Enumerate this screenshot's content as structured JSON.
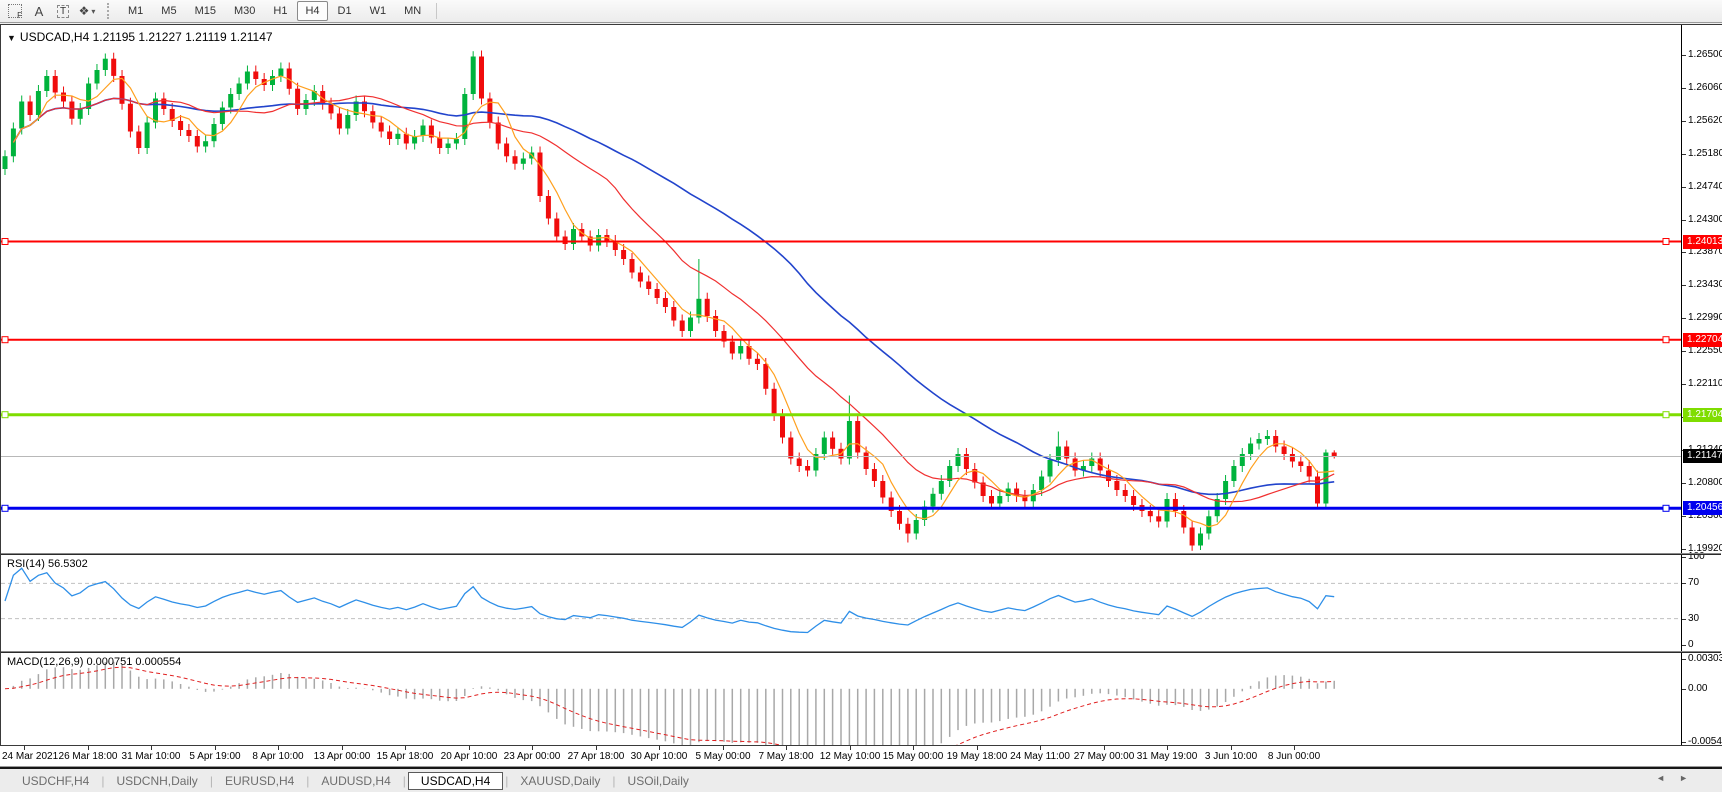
{
  "toolbar": {
    "tools": [
      {
        "name": "indicators-grid",
        "glyph": "F"
      },
      {
        "name": "label-tool",
        "glyph": "A"
      },
      {
        "name": "text-tool",
        "glyph": "T"
      },
      {
        "name": "cycle-lines-tool",
        "glyph": "❖"
      },
      {
        "name": "tool-dropdown",
        "glyph": "▾"
      }
    ],
    "timeframes": [
      "M1",
      "M5",
      "M15",
      "M30",
      "H1",
      "H4",
      "D1",
      "W1",
      "MN"
    ],
    "active_timeframe": "H4"
  },
  "chart_header": {
    "collapse_glyph": "▼",
    "title": "USDCAD,H4 1.21195 1.21227 1.21119 1.21147"
  },
  "rsi_label": "RSI(14) 56.5302",
  "macd_label": "MACD(12,26,9) 0.000751 0.000554",
  "tabs": {
    "items": [
      {
        "label": "USDCHF,H4",
        "active": false
      },
      {
        "label": "USDCNH,Daily",
        "active": false
      },
      {
        "label": "EURUSD,H4",
        "active": false
      },
      {
        "label": "AUDUSD,H4",
        "active": false
      },
      {
        "label": "USDCAD,H4",
        "active": true
      },
      {
        "label": "XAUUSD,Daily",
        "active": false
      },
      {
        "label": "USOil,Daily",
        "active": false
      }
    ],
    "scroll_left_glyph": "◄",
    "scroll_right_glyph": "►"
  },
  "chart_data": {
    "type": "candlestick",
    "symbol": "USDCAD",
    "timeframe": "H4",
    "ohlc_current": {
      "open": "1.21195",
      "high": "1.21227",
      "low": "1.21119",
      "close": "1.21147"
    },
    "colors": {
      "up": "#00b33c",
      "down": "#f00c0c",
      "ma_fast": "#ffa01e",
      "ma_mid": "#f03030",
      "ma_slow": "#2244cc",
      "rsi_line": "#2e8fe8",
      "rsi_level": "#c0c0c0",
      "macd_hist": "#a8a8a8",
      "macd_signal": "#e02020",
      "current_price_bg": "#000000",
      "current_price_line": "#b8b8b8"
    },
    "y_axis": {
      "top_price": 1.269,
      "bottom_price": 1.1986,
      "ticks": [
        "1.26500",
        "1.26060",
        "1.25620",
        "1.25180",
        "1.24740",
        "1.24300",
        "1.23870",
        "1.23430",
        "1.22990",
        "1.22550",
        "1.22110",
        "1.21670",
        "1.21240",
        "1.20800",
        "1.20360",
        "1.19920"
      ]
    },
    "x_axis": {
      "labels": [
        "24 Mar 2021",
        "26 Mar 18:00",
        "31 Mar 10:00",
        "5 Apr 19:00",
        "8 Apr 10:00",
        "13 Apr 00:00",
        "15 Apr 18:00",
        "20 Apr 10:00",
        "23 Apr 00:00",
        "27 Apr 18:00",
        "30 Apr 10:00",
        "5 May 00:00",
        "7 May 18:00",
        "12 May 10:00",
        "15 May 00:00",
        "19 May 18:00",
        "24 May 11:00",
        "27 May 00:00",
        "31 May 19:00",
        "3 Jun 10:00",
        "8 Jun 00:00"
      ]
    },
    "horizontal_lines": [
      {
        "price": 1.24013,
        "label": "1.24013",
        "color": "#ff0000",
        "width": 2
      },
      {
        "price": 1.22704,
        "label": "1.22704",
        "color": "#ff0000",
        "width": 2
      },
      {
        "price": 1.21704,
        "label": "1.21704",
        "color": "#7fdd00",
        "width": 3
      },
      {
        "price": 1.20456,
        "label": "1.20456",
        "color": "#0000ee",
        "width": 3
      }
    ],
    "current_price": {
      "price": 1.21147,
      "label": "1.21147"
    },
    "rsi": {
      "value": 56.5302,
      "levels": [
        70,
        30
      ],
      "range": [
        0,
        100
      ],
      "axis_labels": [
        "100",
        "70",
        "30",
        "0"
      ]
    },
    "macd": {
      "main": 0.000751,
      "signal": 0.000554,
      "axis_labels": [
        "0.003035",
        "0.00",
        "-0.00542"
      ]
    },
    "candles": [
      [
        1.2498,
        1.2523,
        1.249,
        1.2515
      ],
      [
        1.2515,
        1.256,
        1.2507,
        1.2552
      ],
      [
        1.2552,
        1.2596,
        1.2544,
        1.2588
      ],
      [
        1.2588,
        1.2596,
        1.2562,
        1.257
      ],
      [
        1.257,
        1.261,
        1.2562,
        1.2602
      ],
      [
        1.2602,
        1.263,
        1.2594,
        1.2622
      ],
      [
        1.2622,
        1.263,
        1.2592,
        1.26
      ],
      [
        1.26,
        1.2608,
        1.258,
        1.2588
      ],
      [
        1.2588,
        1.2596,
        1.2557,
        1.2565
      ],
      [
        1.2565,
        1.2586,
        1.2557,
        1.2578
      ],
      [
        1.2578,
        1.262,
        1.257,
        1.2612
      ],
      [
        1.2612,
        1.2638,
        1.2604,
        1.263
      ],
      [
        1.263,
        1.2652,
        1.2622,
        1.2645
      ],
      [
        1.2645,
        1.2653,
        1.2614,
        1.2622
      ],
      [
        1.2622,
        1.263,
        1.2577,
        1.2585
      ],
      [
        1.2585,
        1.2593,
        1.254,
        1.2548
      ],
      [
        1.2548,
        1.2556,
        1.2518,
        1.2526
      ],
      [
        1.2526,
        1.2568,
        1.2518,
        1.256
      ],
      [
        1.256,
        1.26,
        1.2552,
        1.2592
      ],
      [
        1.2592,
        1.26,
        1.257,
        1.2578
      ],
      [
        1.2578,
        1.2586,
        1.2554,
        1.2562
      ],
      [
        1.2562,
        1.257,
        1.2542,
        1.255
      ],
      [
        1.255,
        1.2558,
        1.2534,
        1.2542
      ],
      [
        1.2542,
        1.255,
        1.252,
        1.2528
      ],
      [
        1.2528,
        1.2543,
        1.252,
        1.2535
      ],
      [
        1.2535,
        1.2566,
        1.2527,
        1.2558
      ],
      [
        1.2558,
        1.2588,
        1.255,
        1.258
      ],
      [
        1.258,
        1.2606,
        1.2572,
        1.2598
      ],
      [
        1.2598,
        1.262,
        1.259,
        1.2612
      ],
      [
        1.2612,
        1.2636,
        1.2604,
        1.2628
      ],
      [
        1.2628,
        1.2636,
        1.261,
        1.2618
      ],
      [
        1.2618,
        1.2626,
        1.2602,
        1.261
      ],
      [
        1.261,
        1.263,
        1.2602,
        1.2622
      ],
      [
        1.2622,
        1.264,
        1.2614,
        1.2632
      ],
      [
        1.2632,
        1.264,
        1.2597,
        1.2605
      ],
      [
        1.2605,
        1.2613,
        1.257,
        1.2578
      ],
      [
        1.2578,
        1.2598,
        1.257,
        1.259
      ],
      [
        1.259,
        1.261,
        1.2582,
        1.2602
      ],
      [
        1.2602,
        1.261,
        1.2577,
        1.2585
      ],
      [
        1.2585,
        1.2593,
        1.2564,
        1.2572
      ],
      [
        1.2572,
        1.258,
        1.2544,
        1.2552
      ],
      [
        1.2552,
        1.2578,
        1.2544,
        1.257
      ],
      [
        1.257,
        1.2596,
        1.2562,
        1.2588
      ],
      [
        1.2588,
        1.2596,
        1.2567,
        1.2575
      ],
      [
        1.2575,
        1.2583,
        1.2552,
        1.256
      ],
      [
        1.256,
        1.2568,
        1.254,
        1.2548
      ],
      [
        1.2548,
        1.2556,
        1.253,
        1.2538
      ],
      [
        1.2538,
        1.2553,
        1.253,
        1.2545
      ],
      [
        1.2545,
        1.2553,
        1.2524,
        1.2532
      ],
      [
        1.2532,
        1.255,
        1.2524,
        1.2542
      ],
      [
        1.2542,
        1.2564,
        1.2534,
        1.2556
      ],
      [
        1.2556,
        1.2564,
        1.2532,
        1.254
      ],
      [
        1.254,
        1.2548,
        1.2518,
        1.2526
      ],
      [
        1.2526,
        1.254,
        1.2518,
        1.2532
      ],
      [
        1.2532,
        1.2546,
        1.2524,
        1.2538
      ],
      [
        1.2538,
        1.2606,
        1.253,
        1.2598
      ],
      [
        1.2598,
        1.2655,
        1.259,
        1.2648
      ],
      [
        1.2648,
        1.2656,
        1.2584,
        1.2592
      ],
      [
        1.2592,
        1.26,
        1.2552,
        1.256
      ],
      [
        1.256,
        1.2568,
        1.2524,
        1.2532
      ],
      [
        1.2532,
        1.254,
        1.2507,
        1.2515
      ],
      [
        1.2515,
        1.2523,
        1.2497,
        1.2505
      ],
      [
        1.2505,
        1.252,
        1.2497,
        1.2512
      ],
      [
        1.2512,
        1.2528,
        1.2504,
        1.252
      ],
      [
        1.252,
        1.2528,
        1.2454,
        1.2462
      ],
      [
        1.2462,
        1.247,
        1.2424,
        1.2432
      ],
      [
        1.2432,
        1.244,
        1.24,
        1.2408
      ],
      [
        1.2408,
        1.2416,
        1.239,
        1.2398
      ],
      [
        1.2398,
        1.2426,
        1.239,
        1.2418
      ],
      [
        1.2418,
        1.2426,
        1.24,
        1.2408
      ],
      [
        1.2408,
        1.2416,
        1.2388,
        1.2396
      ],
      [
        1.2396,
        1.2418,
        1.2388,
        1.241
      ],
      [
        1.241,
        1.2418,
        1.2394,
        1.2402
      ],
      [
        1.2402,
        1.241,
        1.2382,
        1.239
      ],
      [
        1.239,
        1.2398,
        1.237,
        1.2378
      ],
      [
        1.2378,
        1.2386,
        1.2352,
        1.236
      ],
      [
        1.236,
        1.2368,
        1.234,
        1.2348
      ],
      [
        1.2348,
        1.2356,
        1.233,
        1.2338
      ],
      [
        1.2338,
        1.2346,
        1.2318,
        1.2326
      ],
      [
        1.2326,
        1.2334,
        1.2306,
        1.2314
      ],
      [
        1.2314,
        1.2322,
        1.2288,
        1.2296
      ],
      [
        1.2296,
        1.2304,
        1.2274,
        1.2282
      ],
      [
        1.2282,
        1.2308,
        1.2274,
        1.23
      ],
      [
        1.23,
        1.2378,
        1.2292,
        1.2325
      ],
      [
        1.2325,
        1.2333,
        1.2294,
        1.2302
      ],
      [
        1.2302,
        1.231,
        1.2274,
        1.2282
      ],
      [
        1.2282,
        1.229,
        1.226,
        1.2268
      ],
      [
        1.2268,
        1.2276,
        1.2244,
        1.2252
      ],
      [
        1.2252,
        1.227,
        1.2244,
        1.2262
      ],
      [
        1.2262,
        1.227,
        1.2237,
        1.2245
      ],
      [
        1.2245,
        1.2253,
        1.223,
        1.2238
      ],
      [
        1.2238,
        1.2246,
        1.2197,
        1.2205
      ],
      [
        1.2205,
        1.2213,
        1.2162,
        1.217
      ],
      [
        1.217,
        1.2178,
        1.2132,
        1.214
      ],
      [
        1.214,
        1.2148,
        1.2104,
        1.2112
      ],
      [
        1.2112,
        1.212,
        1.2094,
        1.2102
      ],
      [
        1.2102,
        1.211,
        1.2088,
        1.2096
      ],
      [
        1.2096,
        1.2126,
        1.2088,
        1.2118
      ],
      [
        1.2118,
        1.2148,
        1.211,
        1.214
      ],
      [
        1.214,
        1.2148,
        1.2117,
        1.2125
      ],
      [
        1.2125,
        1.2133,
        1.2104,
        1.2112
      ],
      [
        1.2112,
        1.2196,
        1.2104,
        1.2162
      ],
      [
        1.2162,
        1.217,
        1.2112,
        1.212
      ],
      [
        1.212,
        1.2128,
        1.209,
        1.2098
      ],
      [
        1.2098,
        1.2106,
        1.2074,
        1.2082
      ],
      [
        1.2082,
        1.209,
        1.2052,
        1.206
      ],
      [
        1.206,
        1.2068,
        1.2034,
        1.2042
      ],
      [
        1.2042,
        1.205,
        1.2017,
        1.2025
      ],
      [
        1.2025,
        1.2033,
        1.2,
        1.2012
      ],
      [
        1.2012,
        1.2038,
        1.2004,
        1.203
      ],
      [
        1.203,
        1.2056,
        1.2022,
        1.2048
      ],
      [
        1.2048,
        1.2073,
        1.204,
        1.2065
      ],
      [
        1.2065,
        1.209,
        1.2057,
        1.2082
      ],
      [
        1.2082,
        1.211,
        1.2074,
        1.2102
      ],
      [
        1.2102,
        1.2126,
        1.2094,
        1.2118
      ],
      [
        1.2118,
        1.2126,
        1.209,
        1.2098
      ],
      [
        1.2098,
        1.2106,
        1.2072,
        1.208
      ],
      [
        1.208,
        1.2088,
        1.2054,
        1.2062
      ],
      [
        1.2062,
        1.207,
        1.2044,
        1.2052
      ],
      [
        1.2052,
        1.207,
        1.2044,
        1.2062
      ],
      [
        1.2062,
        1.208,
        1.2054,
        1.2072
      ],
      [
        1.2072,
        1.208,
        1.2054,
        1.2062
      ],
      [
        1.2062,
        1.207,
        1.2047,
        1.2055
      ],
      [
        1.2055,
        1.2078,
        1.2047,
        1.207
      ],
      [
        1.207,
        1.2096,
        1.2062,
        1.2088
      ],
      [
        1.2088,
        1.2118,
        1.208,
        1.211
      ],
      [
        1.211,
        1.2148,
        1.2102,
        1.2128
      ],
      [
        1.2128,
        1.2136,
        1.2104,
        1.2112
      ],
      [
        1.2112,
        1.212,
        1.2088,
        1.2096
      ],
      [
        1.2096,
        1.211,
        1.2088,
        1.2102
      ],
      [
        1.2102,
        1.212,
        1.2094,
        1.2112
      ],
      [
        1.2112,
        1.212,
        1.2088,
        1.2096
      ],
      [
        1.2096,
        1.2104,
        1.2074,
        1.2082
      ],
      [
        1.2082,
        1.209,
        1.2062,
        1.207
      ],
      [
        1.207,
        1.2078,
        1.2054,
        1.2062
      ],
      [
        1.2062,
        1.207,
        1.2042,
        1.205
      ],
      [
        1.205,
        1.2058,
        1.2034,
        1.2042
      ],
      [
        1.2042,
        1.205,
        1.2027,
        1.2035
      ],
      [
        1.2035,
        1.2043,
        1.202,
        1.2028
      ],
      [
        1.2028,
        1.2066,
        1.202,
        1.2058
      ],
      [
        1.2058,
        1.2066,
        1.2034,
        1.2042
      ],
      [
        1.2042,
        1.205,
        1.2012,
        1.202
      ],
      [
        1.202,
        1.2028,
        1.1989,
        1.1996
      ],
      [
        1.1996,
        1.202,
        1.199,
        1.2012
      ],
      [
        1.2012,
        1.2043,
        1.2004,
        1.2035
      ],
      [
        1.2035,
        1.2066,
        1.2027,
        1.2058
      ],
      [
        1.2058,
        1.209,
        1.205,
        1.2082
      ],
      [
        1.2082,
        1.211,
        1.2074,
        1.2102
      ],
      [
        1.2102,
        1.2126,
        1.2094,
        1.2118
      ],
      [
        1.2118,
        1.214,
        1.211,
        1.2132
      ],
      [
        1.2132,
        1.2146,
        1.2124,
        1.2138
      ],
      [
        1.2138,
        1.215,
        1.213,
        1.2142
      ],
      [
        1.2142,
        1.215,
        1.212,
        1.2128
      ],
      [
        1.2128,
        1.2136,
        1.211,
        1.2118
      ],
      [
        1.2118,
        1.2126,
        1.21,
        1.2108
      ],
      [
        1.2108,
        1.2116,
        1.2094,
        1.2102
      ],
      [
        1.2102,
        1.211,
        1.208,
        1.2088
      ],
      [
        1.2088,
        1.2096,
        1.2044,
        1.2052
      ],
      [
        1.2052,
        1.2124,
        1.2044,
        1.212
      ],
      [
        1.212,
        1.2123,
        1.2112,
        1.2115
      ]
    ]
  }
}
